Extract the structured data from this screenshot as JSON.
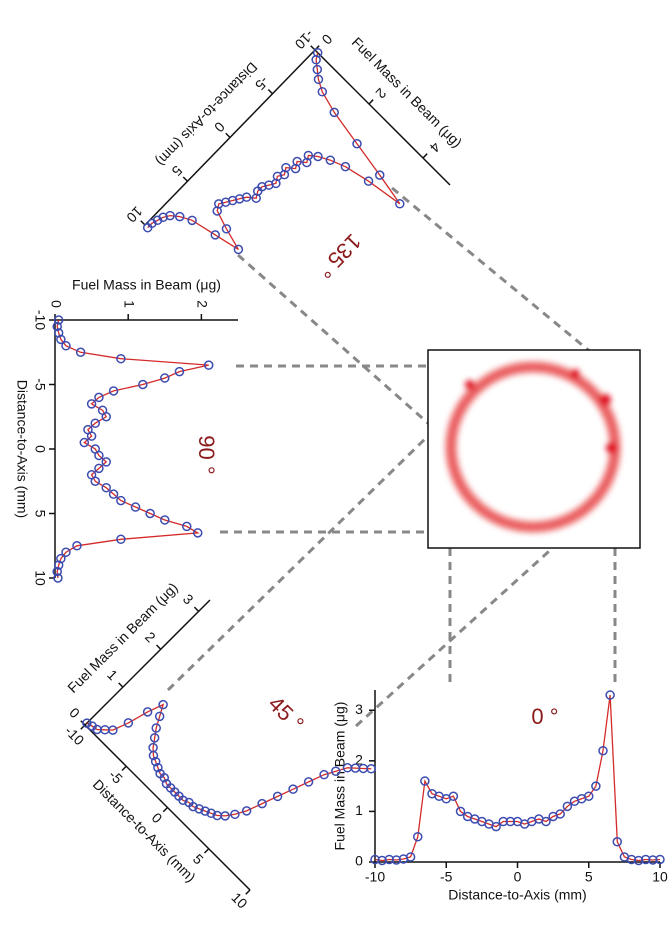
{
  "chart_data": [
    {
      "type": "scatter",
      "annotation": "0 °",
      "xlabel": "Distance-to-Axis (mm)",
      "ylabel": "Fuel Mass in Beam (μg)",
      "x": [
        -10,
        -9.5,
        -9,
        -8.5,
        -8,
        -7.5,
        -7,
        -6.5,
        -6,
        -5.5,
        -5,
        -4.5,
        -4,
        -3.5,
        -3,
        -2.5,
        -2,
        -1.5,
        -1,
        -0.5,
        0,
        0.5,
        1,
        1.5,
        2,
        2.5,
        3,
        3.5,
        4,
        4.5,
        5,
        5.5,
        6,
        6.5,
        7,
        7.5,
        8,
        8.5,
        9,
        9.5,
        10
      ],
      "values": [
        0.05,
        0.03,
        0.05,
        0.04,
        0.06,
        0.1,
        0.5,
        1.6,
        1.35,
        1.3,
        1.25,
        1.3,
        1.0,
        0.9,
        0.85,
        0.8,
        0.75,
        0.7,
        0.8,
        0.8,
        0.8,
        0.75,
        0.8,
        0.85,
        0.8,
        0.9,
        0.95,
        1.1,
        1.2,
        1.25,
        1.3,
        1.5,
        2.2,
        3.3,
        0.4,
        0.1,
        0.05,
        0.03,
        0.05,
        0.04,
        0.05
      ],
      "xlim": [
        -10,
        10
      ],
      "ylim": [
        0,
        3.4
      ],
      "xticks": [
        -10,
        -5,
        0,
        5,
        10
      ],
      "yticks": [
        0,
        1,
        2,
        3
      ],
      "marker_color": "#3b4bb0",
      "line_color": "#d42a2a"
    },
    {
      "type": "scatter",
      "annotation": "90 °",
      "xlabel": "Distance-to-Axis (mm)",
      "ylabel": "Fuel Mass in Beam (μg)",
      "x": [
        -10,
        -9.5,
        -9,
        -8.5,
        -8,
        -7.5,
        -7,
        -6.5,
        -6,
        -5.5,
        -5,
        -4.5,
        -4,
        -3.5,
        -3,
        -2.5,
        -2,
        -1.5,
        -1,
        -0.5,
        0,
        0.5,
        1,
        1.5,
        2,
        2.5,
        3,
        3.5,
        4,
        4.5,
        5,
        5.5,
        6,
        6.5,
        7,
        7.5,
        8,
        8.5,
        9,
        9.5,
        10
      ],
      "values": [
        0.05,
        0.03,
        0.05,
        0.08,
        0.15,
        0.35,
        0.9,
        2.1,
        1.7,
        1.5,
        1.2,
        0.8,
        0.6,
        0.5,
        0.65,
        0.7,
        0.55,
        0.45,
        0.5,
        0.4,
        0.55,
        0.6,
        0.7,
        0.6,
        0.5,
        0.55,
        0.7,
        0.8,
        0.9,
        1.1,
        1.3,
        1.5,
        1.8,
        1.95,
        0.9,
        0.3,
        0.15,
        0.08,
        0.05,
        0.03,
        0.04
      ],
      "xlim": [
        -10,
        10
      ],
      "ylim": [
        0,
        2.5
      ],
      "xticks": [
        -10,
        -5,
        0,
        5,
        10
      ],
      "yticks": [
        0,
        1,
        2
      ],
      "marker_color": "#3b4bb0",
      "line_color": "#d42a2a"
    },
    {
      "type": "scatter",
      "annotation": "45 °",
      "xlabel": "Distance-to-Axis (mm)",
      "ylabel": "Fuel Mass in Beam (μg)",
      "x": [
        -10,
        -9.5,
        -9,
        -8.5,
        -8,
        -7.5,
        -7,
        -6.5,
        -6,
        -5.5,
        -5,
        -4.5,
        -4,
        -3.5,
        -3,
        -2.5,
        -2,
        -1.5,
        -1,
        -0.5,
        0,
        0.5,
        1,
        1.5,
        2,
        2.5,
        3,
        3.5,
        4,
        4.5,
        5,
        5.5,
        6,
        6.5,
        7,
        7.5,
        8,
        8.5,
        9,
        9.5,
        10
      ],
      "values": [
        0.05,
        0.08,
        0.1,
        0.2,
        0.3,
        0.6,
        1.0,
        1.3,
        1.1,
        0.9,
        0.75,
        0.6,
        0.5,
        0.45,
        0.4,
        0.35,
        0.35,
        0.3,
        0.3,
        0.3,
        0.3,
        0.3,
        0.35,
        0.35,
        0.4,
        0.45,
        0.5,
        0.55,
        0.65,
        0.8,
        1.0,
        1.3,
        1.6,
        1.9,
        2.2,
        2.5,
        2.7,
        2.9,
        3.0,
        3.1,
        3.2
      ],
      "xlim": [
        -10,
        10
      ],
      "ylim": [
        0,
        3.3
      ],
      "xticks": [
        -10,
        -5,
        0,
        5,
        10
      ],
      "yticks": [
        0,
        1,
        2,
        3
      ],
      "marker_color": "#3b4bb0",
      "line_color": "#d42a2a"
    },
    {
      "type": "scatter",
      "annotation": "135 °",
      "xlabel": "Distance-to-Axis (mm)",
      "ylabel": "Fuel Mass in Beam (μg)",
      "x": [
        -10,
        -9.5,
        -9,
        -8.5,
        -8,
        -7.5,
        -7,
        -6.5,
        -6,
        -5.5,
        -5,
        -4.5,
        -4,
        -3.5,
        -3,
        -2.5,
        -2,
        -1.5,
        -1,
        -0.5,
        0,
        0.5,
        1,
        1.5,
        2,
        2.5,
        3,
        3.5,
        4,
        4.5,
        5,
        5.5,
        6,
        6.5,
        7,
        7.5,
        8,
        8.5,
        9,
        9.5,
        10
      ],
      "values": [
        0.1,
        0.2,
        0.4,
        0.6,
        0.9,
        1.5,
        2.5,
        3.5,
        4.4,
        3.4,
        2.7,
        2.3,
        2.0,
        1.8,
        1.9,
        1.7,
        1.8,
        1.6,
        1.7,
        1.6,
        1.7,
        1.6,
        1.5,
        1.5,
        1.6,
        1.4,
        1.3,
        1.2,
        1.1,
        1.0,
        1.1,
        1.6,
        2.2,
        1.5,
        0.8,
        0.5,
        0.3,
        0.2,
        0.15,
        0.1,
        0.1
      ],
      "xlim": [
        -10,
        10
      ],
      "ylim": [
        0,
        5
      ],
      "xticks": [
        -10,
        -5,
        0,
        5,
        10
      ],
      "yticks": [
        0,
        2,
        4
      ],
      "marker_color": "#3b4bb0",
      "line_color": "#d42a2a"
    }
  ]
}
